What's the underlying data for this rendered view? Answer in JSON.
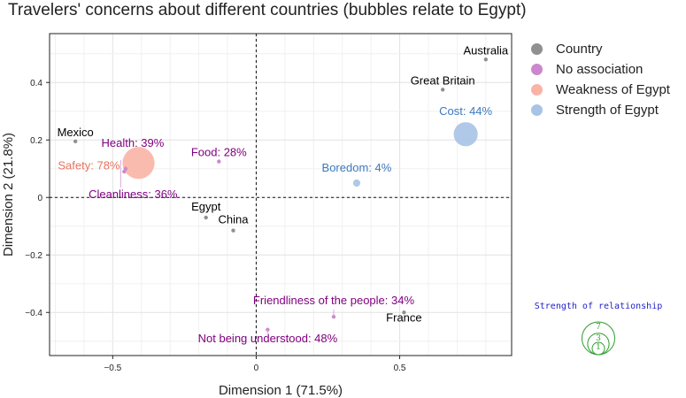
{
  "chart_data": {
    "type": "scatter",
    "title": "Travelers' concerns about different countries (bubbles relate to Egypt)",
    "xlabel": "Dimension 1 (71.5%)",
    "ylabel": "Dimension 2 (21.8%)",
    "xlim": [
      -0.72,
      0.89
    ],
    "ylim": [
      -0.55,
      0.57
    ],
    "x_ticks": [
      -0.5,
      0,
      0.5
    ],
    "x_tick_labels": [
      "−0.5",
      "0",
      "0.5"
    ],
    "y_ticks": [
      -0.4,
      -0.2,
      0,
      0.2,
      0.4
    ],
    "y_tick_labels": [
      "−0.4",
      "−0.2",
      "0",
      "0.2",
      "0.4"
    ],
    "grid": true,
    "legend_position": "right",
    "legend": [
      {
        "key": "country",
        "label": "Country",
        "color": "#909090"
      },
      {
        "key": "no_association",
        "label": "No association",
        "color": "#cc88cc"
      },
      {
        "key": "weakness",
        "label": "Weakness of Egypt",
        "color": "#f9b4a6"
      },
      {
        "key": "strength",
        "label": "Strength of Egypt",
        "color": "#a9c3e6"
      }
    ],
    "label_colors": {
      "country": "#000000",
      "no_association": "#800080",
      "weakness": "#e8735e",
      "strength": "#3d79bf"
    },
    "points": [
      {
        "label": "Australia",
        "group": "country",
        "x": 0.8,
        "y": 0.48,
        "size": 0
      },
      {
        "label": "Great Britain",
        "group": "country",
        "x": 0.65,
        "y": 0.375,
        "size": 0
      },
      {
        "label": "Mexico",
        "group": "country",
        "x": -0.63,
        "y": 0.195,
        "size": 0
      },
      {
        "label": "Egypt",
        "group": "country",
        "x": -0.175,
        "y": -0.07,
        "size": 0
      },
      {
        "label": "China",
        "group": "country",
        "x": -0.08,
        "y": -0.115,
        "size": 0
      },
      {
        "label": "France",
        "group": "country",
        "x": 0.515,
        "y": -0.4,
        "size": 0
      },
      {
        "label": "Cost: 44%",
        "group": "strength",
        "x": 0.73,
        "y": 0.22,
        "size": 44
      },
      {
        "label": "Boredom: 4%",
        "group": "strength",
        "x": 0.35,
        "y": 0.05,
        "size": 4
      },
      {
        "label": "Safety: 78%",
        "group": "weakness",
        "x": -0.41,
        "y": 0.12,
        "size": 78
      },
      {
        "label": "Health: 39%",
        "group": "no_association",
        "x": -0.455,
        "y": 0.1,
        "size": 39
      },
      {
        "label": "Cleanliness: 36%",
        "group": "no_association",
        "x": -0.46,
        "y": 0.09,
        "size": 36
      },
      {
        "label": "Food: 28%",
        "group": "no_association",
        "x": -0.13,
        "y": 0.125,
        "size": 28
      },
      {
        "label": "Friendliness of the people: 34%",
        "group": "no_association",
        "x": 0.27,
        "y": -0.415,
        "size": 34
      },
      {
        "label": "Not being understood: 48%",
        "group": "no_association",
        "x": 0.04,
        "y": -0.46,
        "size": 48
      }
    ],
    "size_key": {
      "title": "Strength of relationship",
      "values": [
        7,
        3,
        1
      ],
      "value_labels": [
        "7",
        "3",
        "1"
      ],
      "color": "#2e9e2e",
      "title_color": "#2222cc"
    }
  }
}
